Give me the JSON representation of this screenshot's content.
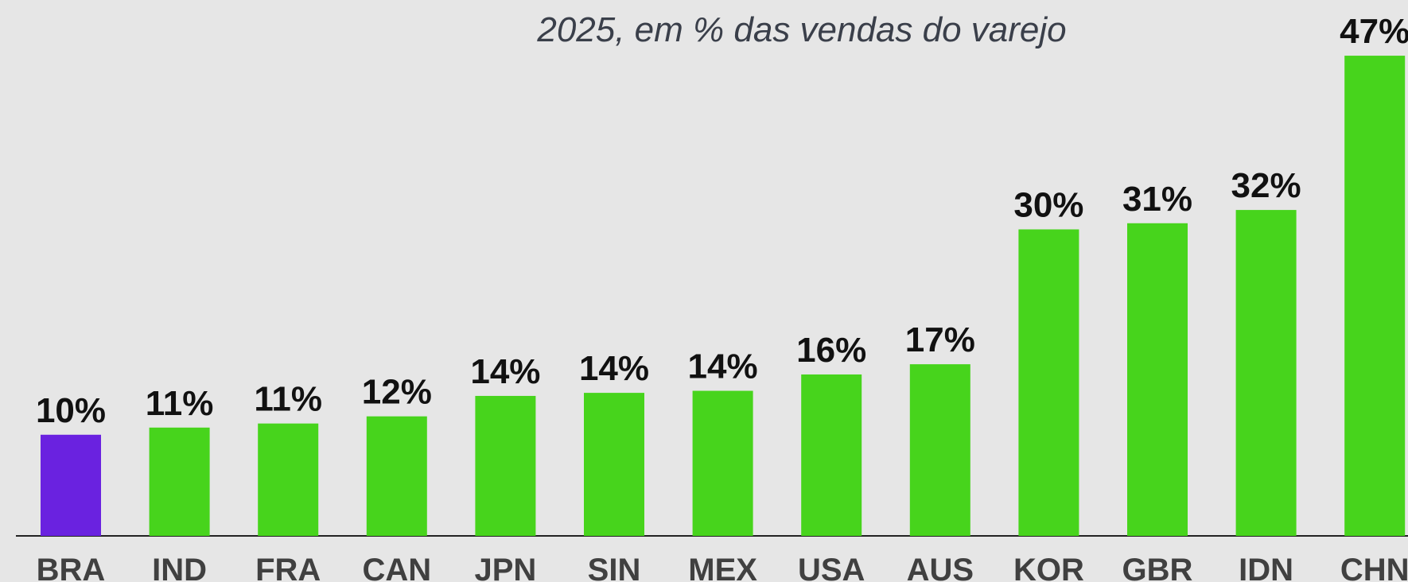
{
  "chart_data": {
    "type": "bar",
    "title": "2025, em % das vendas do varejo",
    "categories": [
      "BRA",
      "IND",
      "FRA",
      "CAN",
      "JPN",
      "SIN",
      "MEX",
      "USA",
      "AUS",
      "KOR",
      "GBR",
      "IDN",
      "CHN"
    ],
    "values": [
      9.9,
      10.6,
      11.0,
      11.7,
      13.7,
      14.0,
      14.2,
      15.8,
      16.8,
      30.0,
      30.6,
      31.9,
      47.0
    ],
    "value_labels": [
      "10%",
      "11%",
      "11%",
      "12%",
      "14%",
      "14%",
      "14%",
      "16%",
      "17%",
      "30%",
      "31%",
      "32%",
      "47%"
    ],
    "colors": [
      "#6a22e0",
      "#47d41c",
      "#47d41c",
      "#47d41c",
      "#47d41c",
      "#47d41c",
      "#47d41c",
      "#47d41c",
      "#47d41c",
      "#47d41c",
      "#47d41c",
      "#47d41c",
      "#47d41c"
    ]
  }
}
